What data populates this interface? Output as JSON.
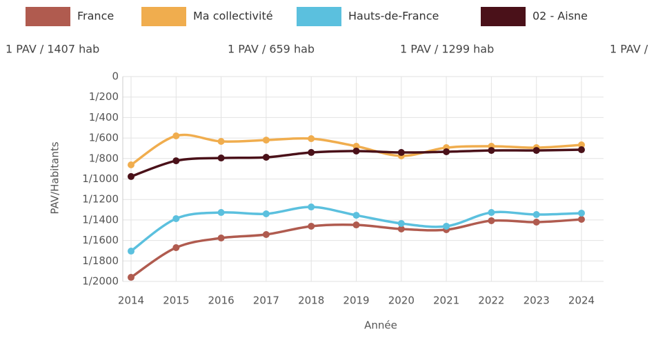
{
  "chart_data": {
    "type": "line",
    "annotations": [
      "1 PAV / 1407 hab",
      "1 PAV / 659 hab",
      "1 PAV / 1299 hab",
      "1 PAV /"
    ],
    "xlabel": "Année",
    "ylabel": "PAV/Habitants",
    "categories": [
      "2014",
      "2015",
      "2016",
      "2017",
      "2018",
      "2019",
      "2020",
      "2021",
      "2022",
      "2023",
      "2024"
    ],
    "series": [
      {
        "name": "France",
        "color": "#b05b4f",
        "values": [
          1960,
          1670,
          1576,
          1542,
          1461,
          1448,
          1488,
          1495,
          1407,
          1421,
          1394
        ]
      },
      {
        "name": "Ma collectivité",
        "color": "#f0ad4e",
        "values": [
          862,
          579,
          633,
          620,
          606,
          680,
          774,
          694,
          680,
          694,
          667
        ]
      },
      {
        "name": "Hauts-de-France",
        "color": "#5bc0de",
        "values": [
          1704,
          1387,
          1327,
          1340,
          1273,
          1354,
          1434,
          1461,
          1327,
          1347,
          1333
        ]
      },
      {
        "name": "02 - Aisne",
        "color": "#4a1119",
        "values": [
          976,
          822,
          795,
          788,
          741,
          727,
          741,
          734,
          721,
          721,
          714
        ]
      }
    ],
    "ylim": [
      0,
      2000
    ],
    "inverted": true,
    "yticks": [
      0,
      {
        "value": 200,
        "label": "1/200"
      },
      {
        "value": 400,
        "label": "1/400"
      },
      {
        "value": 600,
        "label": "1/600"
      },
      {
        "value": 800,
        "label": "1/800"
      },
      {
        "value": 1000,
        "label": "1/1000"
      },
      {
        "value": 1200,
        "label": "1/1200"
      },
      {
        "value": 1400,
        "label": "1/1400"
      },
      {
        "value": 1600,
        "label": "1/1600"
      },
      {
        "value": 1800,
        "label": "1/1800"
      },
      {
        "value": 2000,
        "label": "1/2000"
      }
    ],
    "grid": true
  }
}
